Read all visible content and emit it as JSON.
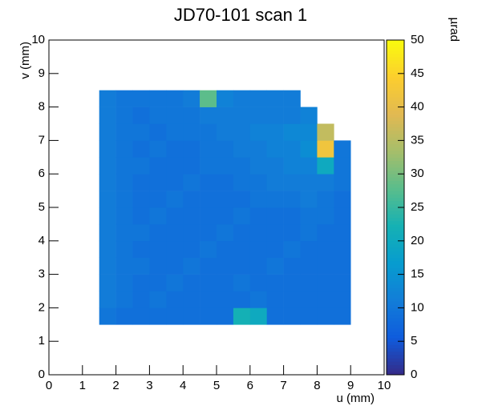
{
  "chart_data": {
    "type": "heatmap",
    "title": "JD70-101 scan 1",
    "xlabel": "u (mm)",
    "ylabel": "v (mm)",
    "zlabel": "µrad",
    "xlim": [
      0,
      10
    ],
    "xticks": [
      0,
      1,
      2,
      3,
      4,
      5,
      6,
      7,
      8,
      9,
      10
    ],
    "ylim": [
      0,
      10
    ],
    "yticks": [
      0,
      1,
      2,
      3,
      4,
      5,
      6,
      7,
      8,
      9,
      10
    ],
    "zlim": [
      0,
      50
    ],
    "zticks": [
      0,
      5,
      10,
      15,
      20,
      25,
      30,
      35,
      40,
      45,
      50
    ],
    "xbins": [
      1.5,
      2,
      2.5,
      3,
      3.5,
      4,
      4.5,
      5,
      5.5,
      6,
      6.5,
      7,
      7.5,
      8,
      8.5,
      9
    ],
    "ybins": [
      1.5,
      2,
      2.5,
      3,
      3.5,
      4,
      4.5,
      5,
      5.5,
      6,
      6.5,
      7,
      7.5,
      8,
      8.5
    ],
    "z": [
      [
        10,
        9,
        9,
        9,
        9,
        9,
        9,
        9,
        22,
        20,
        9,
        9,
        9,
        9,
        9
      ],
      [
        11,
        10,
        9,
        10,
        9,
        9,
        9,
        9,
        9,
        10,
        9,
        9,
        9,
        9,
        9
      ],
      [
        11,
        10,
        9,
        9,
        10,
        9,
        9,
        9,
        10,
        9,
        9,
        9,
        9,
        9,
        9
      ],
      [
        11,
        10,
        10,
        9,
        9,
        10,
        9,
        9,
        9,
        9,
        10,
        9,
        9,
        9,
        9
      ],
      [
        11,
        10,
        9,
        9,
        9,
        9,
        10,
        9,
        9,
        9,
        9,
        10,
        9,
        9,
        9
      ],
      [
        11,
        10,
        10,
        9,
        9,
        9,
        9,
        10,
        9,
        9,
        9,
        9,
        10,
        9,
        9
      ],
      [
        11,
        10,
        9,
        10,
        9,
        9,
        9,
        9,
        10,
        9,
        9,
        9,
        10,
        10,
        9
      ],
      [
        11,
        10,
        9,
        9,
        10,
        9,
        9,
        9,
        9,
        10,
        10,
        10,
        11,
        10,
        9
      ],
      [
        11,
        10,
        9,
        9,
        9,
        10,
        9,
        9,
        10,
        10,
        11,
        11,
        11,
        11,
        10
      ],
      [
        11,
        10,
        10,
        9,
        9,
        9,
        10,
        10,
        10,
        11,
        11,
        12,
        12,
        20,
        10
      ],
      [
        11,
        10,
        9,
        10,
        9,
        9,
        10,
        10,
        11,
        11,
        12,
        12,
        14,
        42,
        10
      ],
      [
        11,
        10,
        10,
        9,
        10,
        10,
        10,
        11,
        11,
        12,
        12,
        13,
        13,
        36,
        null
      ],
      [
        11,
        10,
        9,
        10,
        10,
        10,
        11,
        11,
        11,
        11,
        11,
        11,
        12,
        null,
        null
      ],
      [
        11,
        10,
        10,
        10,
        10,
        11,
        28,
        12,
        11,
        11,
        11,
        11,
        null,
        null,
        null
      ]
    ]
  }
}
